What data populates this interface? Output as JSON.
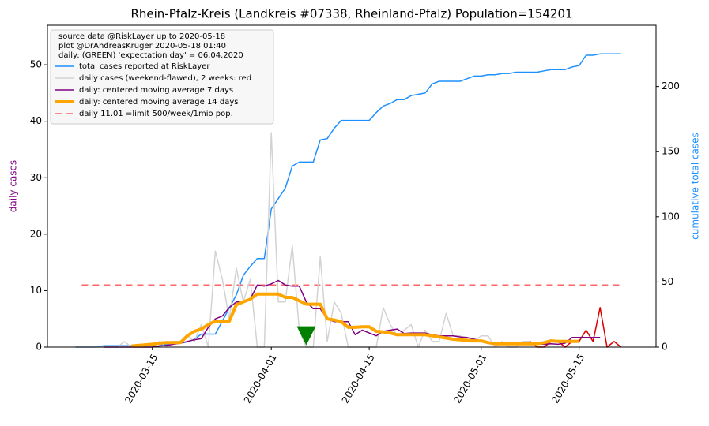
{
  "chart_data": {
    "type": "line",
    "title": "Rhein-Pfalz-Kreis (Landkreis #07338, Rheinland-Pfalz) Population=154201",
    "ylabel": "daily cases",
    "ylabel_color": "purple",
    "y2label": "cumulative total cases",
    "y2label_color": "#1e90ff",
    "legend_header": [
      "source data @RiskLayer up to 2020-05-18",
      "plot @DrAndreasKruger 2020-05-18 01:40",
      "daily: (GREEN) 'expectation day' = 06.04.2020"
    ],
    "legend_position": "upper left",
    "x": [
      "2020-03-04",
      "2020-03-05",
      "2020-03-06",
      "2020-03-07",
      "2020-03-08",
      "2020-03-09",
      "2020-03-10",
      "2020-03-11",
      "2020-03-12",
      "2020-03-13",
      "2020-03-14",
      "2020-03-15",
      "2020-03-16",
      "2020-03-17",
      "2020-03-18",
      "2020-03-19",
      "2020-03-20",
      "2020-03-21",
      "2020-03-22",
      "2020-03-23",
      "2020-03-24",
      "2020-03-25",
      "2020-03-26",
      "2020-03-27",
      "2020-03-28",
      "2020-03-29",
      "2020-03-30",
      "2020-03-31",
      "2020-04-01",
      "2020-04-02",
      "2020-04-03",
      "2020-04-04",
      "2020-04-05",
      "2020-04-06",
      "2020-04-07",
      "2020-04-08",
      "2020-04-09",
      "2020-04-10",
      "2020-04-11",
      "2020-04-12",
      "2020-04-13",
      "2020-04-14",
      "2020-04-15",
      "2020-04-16",
      "2020-04-17",
      "2020-04-18",
      "2020-04-19",
      "2020-04-20",
      "2020-04-21",
      "2020-04-22",
      "2020-04-23",
      "2020-04-24",
      "2020-04-25",
      "2020-04-26",
      "2020-04-27",
      "2020-04-28",
      "2020-04-29",
      "2020-04-30",
      "2020-05-01",
      "2020-05-02",
      "2020-05-03",
      "2020-05-04",
      "2020-05-05",
      "2020-05-06",
      "2020-05-07",
      "2020-05-08",
      "2020-05-09",
      "2020-05-10",
      "2020-05-11",
      "2020-05-12",
      "2020-05-13",
      "2020-05-14",
      "2020-05-15",
      "2020-05-16",
      "2020-05-17",
      "2020-05-18",
      "2020-05-19",
      "2020-05-20",
      "2020-05-21"
    ],
    "xlim": [
      "2020-02-29",
      "2020-05-26"
    ],
    "xticks": [
      "2020-03-15",
      "2020-04-01",
      "2020-04-15",
      "2020-05-01",
      "2020-05-15"
    ],
    "ylim": [
      0,
      57
    ],
    "yticks": [
      0,
      10,
      20,
      30,
      40,
      50
    ],
    "y2lim": [
      0,
      247
    ],
    "y2ticks": [
      0,
      50,
      100,
      150,
      200
    ],
    "series": [
      {
        "name": "total cases reported at RiskLayer",
        "color": "#1e90ff",
        "linewidth": 1.5,
        "axis": "y2",
        "values": [
          0,
          0,
          0,
          0,
          1,
          1,
          1,
          1,
          1,
          2,
          2,
          2,
          2,
          2,
          3,
          3,
          4,
          6,
          10,
          10,
          10,
          20,
          30,
          40,
          55,
          62,
          68,
          68,
          106,
          114,
          122,
          139,
          142,
          142,
          142,
          159,
          160,
          168,
          174,
          174,
          174,
          174,
          174,
          180,
          185,
          187,
          190,
          190,
          193,
          194,
          195,
          202,
          204,
          204,
          204,
          204,
          206,
          208,
          208,
          209,
          209,
          210,
          210,
          211,
          211,
          211,
          211,
          212,
          213,
          213,
          213,
          215,
          216,
          224,
          224,
          225,
          225,
          225,
          225
        ]
      },
      {
        "name": "daily cases (weekend-flawed), 2 weeks: red",
        "color": "#d3d3d3",
        "recent_color": "#e00000",
        "recent_days": 14,
        "linewidth": 1.5,
        "values": [
          0,
          0,
          0,
          0,
          0,
          0,
          0,
          1,
          0,
          0,
          0,
          0,
          1,
          0,
          1,
          1,
          2,
          1,
          4,
          0,
          17,
          12,
          5,
          14,
          8,
          12,
          0,
          0,
          38,
          8,
          8,
          18,
          3,
          0,
          0,
          16,
          1,
          8,
          6,
          0,
          0,
          0,
          0,
          0,
          7,
          4,
          2,
          3,
          4,
          0,
          3,
          1,
          1,
          6,
          2,
          2,
          1,
          1,
          2,
          2,
          0,
          1,
          0,
          0,
          1,
          1,
          0,
          0,
          1,
          1,
          0,
          1,
          1,
          3,
          1,
          7,
          0,
          1,
          0
        ]
      },
      {
        "name": "daily: centered moving average 7 days",
        "color": "purple",
        "linewidth": 1.5,
        "values": [
          null,
          null,
          null,
          null,
          0,
          0,
          0,
          0,
          0,
          0,
          0,
          0,
          0.2,
          0.3,
          0.5,
          0.7,
          1.0,
          1.3,
          1.5,
          3.5,
          5,
          5.5,
          7,
          8,
          8,
          8.5,
          11,
          10.8,
          11.2,
          11.8,
          11,
          10.8,
          10.8,
          8,
          6.8,
          6.8,
          5,
          4.5,
          4.5,
          4.5,
          2.2,
          3,
          2.5,
          2,
          2.8,
          3,
          3.2,
          2.4,
          2.5,
          2.5,
          2.5,
          2.2,
          2,
          2,
          2,
          1.8,
          1.7,
          1.4,
          1.1,
          0.9,
          0.8,
          0.6,
          0.5,
          0.5,
          0.6,
          0.7,
          0.6,
          0.5,
          0.6,
          0.5,
          0.7,
          1.7,
          1.7,
          1.7,
          1.7,
          1.7,
          null,
          null,
          null
        ]
      },
      {
        "name": "daily: centered moving average 14 days",
        "color": "orange",
        "linewidth": 4,
        "values": [
          null,
          null,
          null,
          null,
          null,
          null,
          null,
          null,
          0.2,
          0.3,
          0.4,
          0.5,
          0.7,
          0.8,
          0.8,
          0.8,
          2,
          2.8,
          3.2,
          4,
          4.6,
          4.6,
          4.6,
          7.5,
          8,
          8.5,
          9.4,
          9.4,
          9.4,
          9.4,
          8.8,
          8.8,
          8.2,
          7.6,
          7.6,
          7.6,
          5,
          4.8,
          4.5,
          3.5,
          3.5,
          3.6,
          3.6,
          2.8,
          2.7,
          2.5,
          2.2,
          2.2,
          2.2,
          2.2,
          2.2,
          2,
          1.8,
          1.6,
          1.4,
          1.3,
          1.2,
          1.1,
          1.1,
          0.8,
          0.6,
          0.6,
          0.6,
          0.6,
          0.6,
          0.6,
          0.6,
          0.8,
          1.1,
          1.0,
          1.0,
          1.0,
          1.0,
          null,
          null,
          null,
          null,
          null,
          null
        ]
      }
    ],
    "limit": {
      "name": "daily 11.01 =limit 500/week/1mio pop.",
      "value": 11.01,
      "color": "#ff6666"
    },
    "expectation_marker": {
      "x": "2020-04-06",
      "y": 2,
      "color": "green"
    }
  }
}
